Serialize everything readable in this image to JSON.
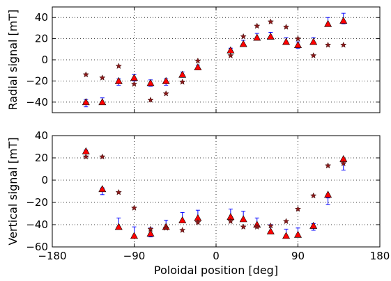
{
  "chart_data": [
    {
      "type": "scatter",
      "panel": "top",
      "title": "",
      "xlabel": "",
      "ylabel": "Radial signal [mT]",
      "xlim": [
        -180,
        180
      ],
      "ylim": [
        -50,
        50
      ],
      "xticks": [
        -180,
        -90,
        0,
        90,
        180
      ],
      "yticks": [
        -40,
        -20,
        0,
        20,
        40
      ],
      "x_tick_labels_shown": false,
      "grid": true,
      "legend": "none",
      "series": [
        {
          "marker": "errorbar",
          "color": "#0000ff",
          "x": [
            -143,
            -125,
            -107,
            -90,
            -72,
            -55,
            -37,
            -20,
            16,
            30,
            45,
            60,
            77,
            90,
            107,
            123,
            140
          ],
          "y": [
            -41,
            -39,
            -21,
            -17,
            -22,
            -21,
            -14,
            -7,
            9,
            16,
            22,
            23,
            18,
            14,
            18,
            36,
            39
          ],
          "err": [
            3.5,
            3,
            3,
            3,
            3,
            3,
            2.5,
            2,
            2,
            2.5,
            3,
            3,
            3,
            3,
            3,
            4,
            5
          ]
        },
        {
          "marker": "triangle",
          "color": "#ff0000",
          "x": [
            -143,
            -125,
            -107,
            -90,
            -72,
            -55,
            -37,
            -20,
            16,
            30,
            45,
            60,
            77,
            90,
            107,
            123,
            140
          ],
          "y": [
            -40,
            -40,
            -20,
            -17,
            -22,
            -20,
            -14,
            -7,
            9,
            15,
            21,
            22,
            17,
            14,
            17,
            34,
            37
          ]
        },
        {
          "marker": "star",
          "color": "#8b1a1a",
          "x": [
            -143,
            -125,
            -107,
            -90,
            -72,
            -55,
            -37,
            -20,
            16,
            30,
            45,
            60,
            77,
            90,
            107,
            123,
            140
          ],
          "y": [
            -14,
            -17,
            -6,
            -23,
            -38,
            -32,
            -21,
            -1,
            4,
            22,
            32,
            36,
            31,
            20,
            4,
            14,
            14
          ]
        }
      ]
    },
    {
      "type": "scatter",
      "panel": "bottom",
      "title": "",
      "xlabel": "Poloidal position [deg]",
      "ylabel": "Vertical signal [mT]",
      "xlim": [
        -180,
        180
      ],
      "ylim": [
        -60,
        40
      ],
      "xticks": [
        -180,
        -90,
        0,
        90,
        180
      ],
      "x_tick_labels": [
        "−180",
        "−90",
        "0",
        "90",
        "180"
      ],
      "yticks": [
        -60,
        -40,
        -20,
        0,
        20,
        40
      ],
      "y_tick_labels": [
        "−60",
        "−40",
        "−20",
        "0",
        "20",
        "40"
      ],
      "grid": true,
      "legend": "none",
      "series": [
        {
          "marker": "errorbar",
          "color": "#0000ff",
          "x": [
            -143,
            -125,
            -107,
            -90,
            -72,
            -55,
            -37,
            -20,
            16,
            30,
            45,
            60,
            77,
            90,
            107,
            123,
            140
          ],
          "y": [
            24,
            -10,
            -38,
            -47,
            -47,
            -40,
            -33,
            -31,
            -30,
            -32,
            -38,
            -44,
            -48,
            -47,
            -42,
            -19,
            12
          ],
          "err": [
            3,
            3,
            4,
            5,
            4,
            4,
            4,
            4,
            4,
            4,
            4,
            4,
            4,
            4,
            3,
            3,
            3
          ]
        },
        {
          "marker": "triangle",
          "color": "#ff0000",
          "x": [
            -143,
            -125,
            -107,
            -90,
            -72,
            -55,
            -37,
            -20,
            16,
            30,
            45,
            60,
            77,
            90,
            107,
            123,
            140
          ],
          "y": [
            26,
            -8,
            -42,
            -50,
            -48,
            -42,
            -36,
            -34,
            -33,
            -35,
            -40,
            -46,
            -50,
            -49,
            -41,
            -13,
            19
          ]
        },
        {
          "marker": "star",
          "color": "#8b1a1a",
          "x": [
            -143,
            -125,
            -107,
            -90,
            -72,
            -55,
            -37,
            -20,
            16,
            30,
            45,
            60,
            77,
            90,
            107,
            123,
            140
          ],
          "y": [
            21,
            21,
            -11,
            -25,
            -44,
            -43,
            -45,
            -38,
            -37,
            -42,
            -42,
            -41,
            -37,
            -26,
            -14,
            13,
            15
          ]
        }
      ]
    }
  ]
}
